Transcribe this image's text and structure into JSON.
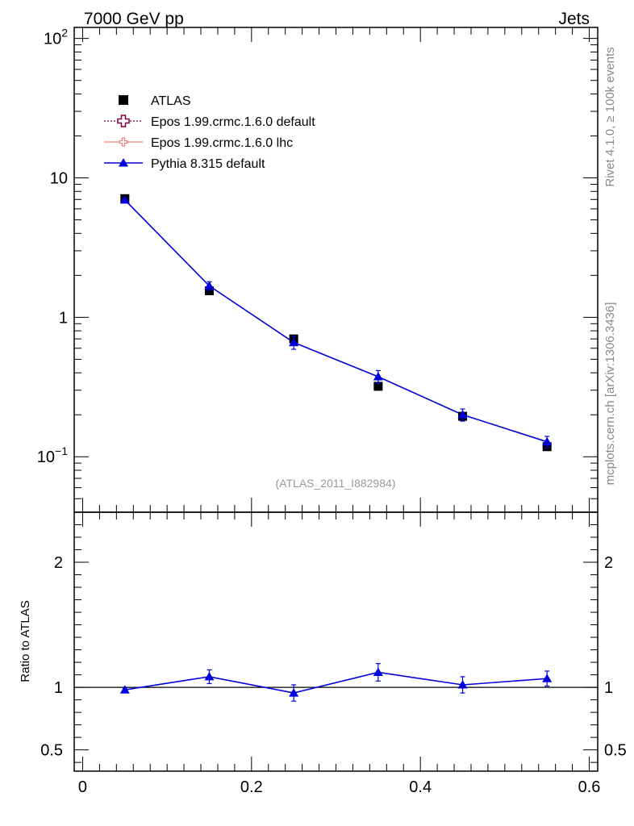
{
  "header": {
    "left": "7000 GeV pp",
    "right": "Jets"
  },
  "side_labels": {
    "rivet": "Rivet 4.1.0, ≥ 100k events",
    "mcplots": "mcplots.cern.ch [arXiv:1306.3436]"
  },
  "analysis_label": "(ATLAS_2011_I882984)",
  "colors": {
    "atlas": "#000000",
    "epos_default": "#800040",
    "epos_lhc": "#f08080",
    "pythia": "#0000dd"
  },
  "chart_data": [
    {
      "type": "line",
      "panel": "main",
      "yscale": "log",
      "xlim": [
        -0.01,
        0.61
      ],
      "ylim": [
        0.04,
        120
      ],
      "x": [
        0.05,
        0.15,
        0.25,
        0.35,
        0.45,
        0.55
      ],
      "yticks": [
        {
          "value": 0.1,
          "base": "10",
          "exp": "−1"
        },
        {
          "value": 1,
          "label": "1"
        },
        {
          "value": 10,
          "label": "10"
        },
        {
          "value": 100,
          "base": "10",
          "exp": "2"
        }
      ],
      "legend": [
        {
          "name": "ATLAS",
          "marker": "square"
        },
        {
          "name": "Epos 1.99.crmc.1.6.0 default",
          "marker": "open-cross"
        },
        {
          "name": "Epos 1.99.crmc.1.6.0 lhc",
          "marker": "small-cross"
        },
        {
          "name": "Pythia 8.315 default",
          "marker": "triangle"
        }
      ],
      "series": [
        {
          "name": "ATLAS",
          "values": [
            7.1,
            1.55,
            0.7,
            0.32,
            0.195,
            0.118
          ],
          "err": [
            0.25,
            0.06,
            0.03,
            0.015,
            0.01,
            0.007
          ]
        },
        {
          "name": "Pythia 8.315 default",
          "values": [
            6.95,
            1.68,
            0.66,
            0.375,
            0.2,
            0.128
          ],
          "err": [
            0.1,
            0.12,
            0.07,
            0.04,
            0.02,
            0.012
          ]
        }
      ]
    },
    {
      "type": "line",
      "panel": "ratio",
      "ylabel": "Ratio to ATLAS",
      "xlim": [
        -0.01,
        0.61
      ],
      "ylim": [
        0.33,
        2.4
      ],
      "x": [
        0.05,
        0.15,
        0.25,
        0.35,
        0.45,
        0.55
      ],
      "xticks": [
        {
          "value": 0,
          "label": "0"
        },
        {
          "value": 0.2,
          "label": "0.2"
        },
        {
          "value": 0.4,
          "label": "0.4"
        },
        {
          "value": 0.6,
          "label": "0.6"
        }
      ],
      "yticks": [
        {
          "value": 0.5,
          "label": "0.5"
        },
        {
          "value": 1,
          "label": "1"
        },
        {
          "value": 2,
          "label": "2"
        }
      ],
      "reference": 1.0,
      "series": [
        {
          "name": "Pythia 8.315 default",
          "values": [
            0.98,
            1.085,
            0.955,
            1.12,
            1.02,
            1.07
          ],
          "err": [
            0.015,
            0.055,
            0.065,
            0.07,
            0.065,
            0.06
          ]
        }
      ]
    }
  ]
}
